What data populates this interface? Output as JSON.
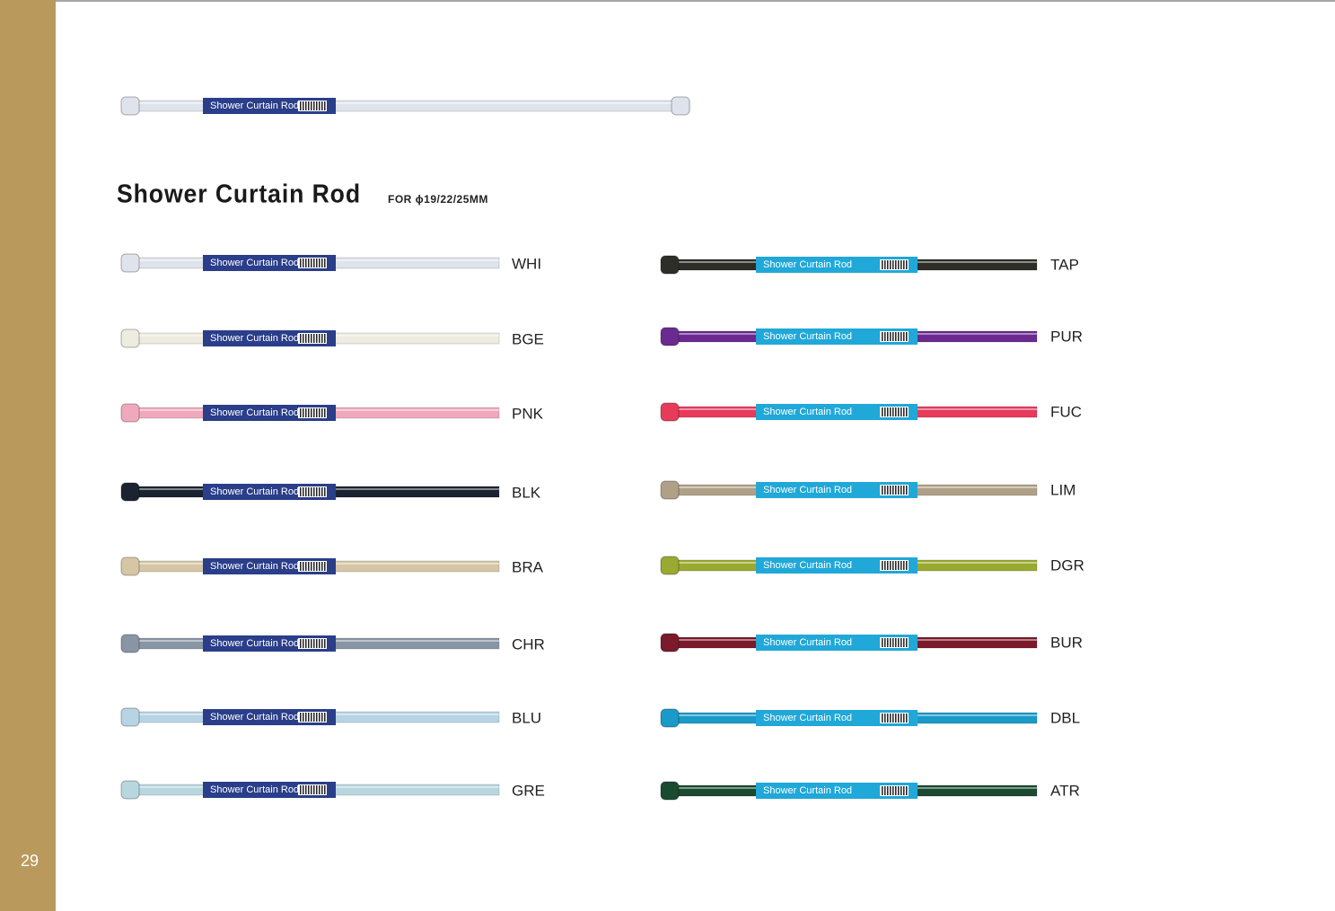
{
  "page_number": "29",
  "title": "Shower Curtain Rod",
  "subtitle": "FOR ϕ19/22/25MM",
  "rod_label": "Shower Curtain Rod",
  "left_column": [
    {
      "code": "WHI",
      "color": "#dfe3ec"
    },
    {
      "code": "BGE",
      "color": "#eeebe0"
    },
    {
      "code": "PNK",
      "color": "#f0a8bc"
    },
    {
      "code": "BLK",
      "color": "#1c2330"
    },
    {
      "code": "BRA",
      "color": "#d6c6a6"
    },
    {
      "code": "CHR",
      "color": "#8895a5"
    },
    {
      "code": "BLU",
      "color": "#b6d4e4"
    },
    {
      "code": "GRE",
      "color": "#b8d6de"
    }
  ],
  "right_column": [
    {
      "code": "TAP",
      "color": "#2e2e28"
    },
    {
      "code": "PUR",
      "color": "#6a2a90"
    },
    {
      "code": "FUC",
      "color": "#e83a5a"
    },
    {
      "code": "LIM",
      "color": "#b0a088"
    },
    {
      "code": "DGR",
      "color": "#9aaa30"
    },
    {
      "code": "BUR",
      "color": "#7a1a2a"
    },
    {
      "code": "DBL",
      "color": "#1a9ac8"
    },
    {
      "code": "ATR",
      "color": "#1a4a30"
    }
  ]
}
